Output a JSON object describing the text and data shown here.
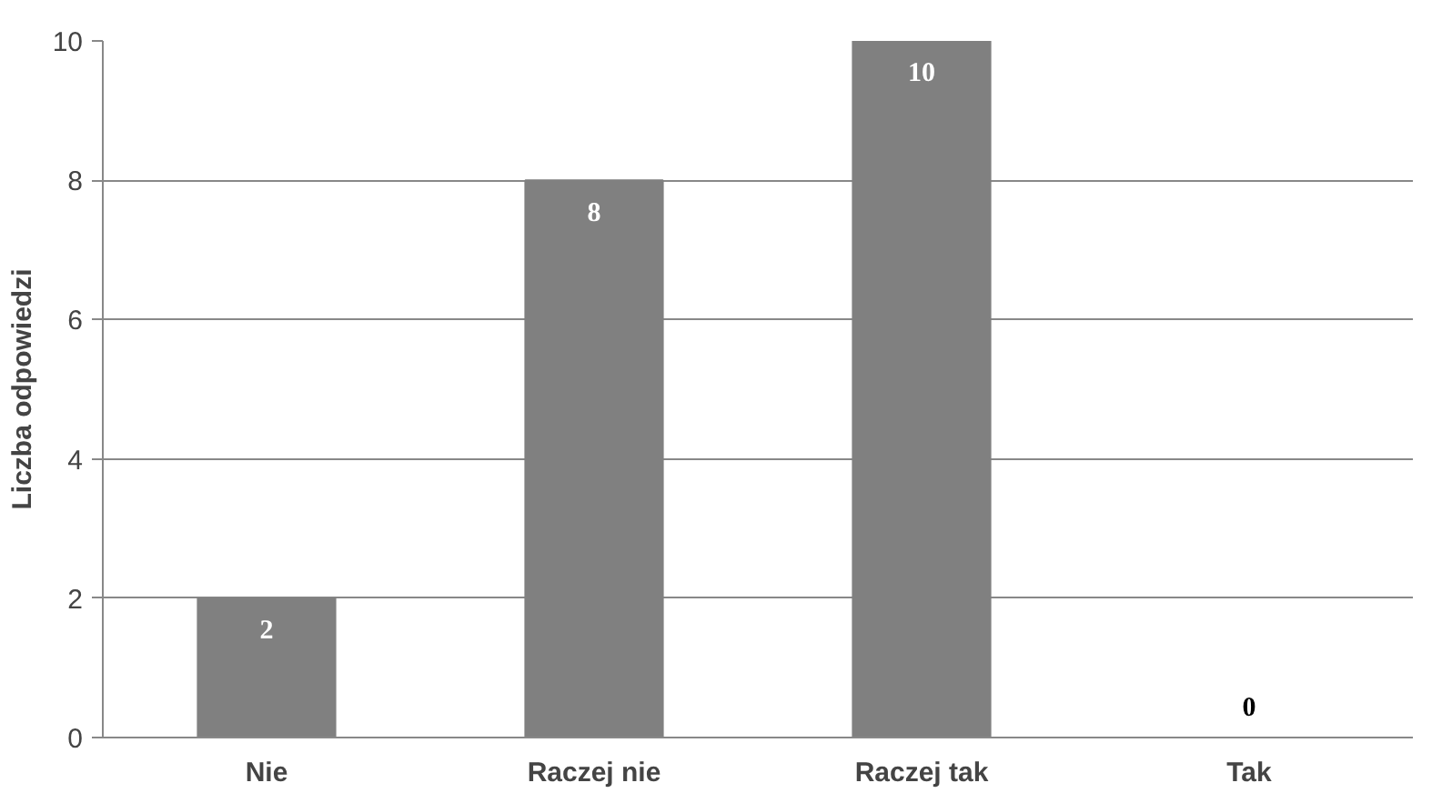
{
  "chart_data": {
    "type": "bar",
    "ylabel": "Liczba odpowiedzi",
    "categories": [
      "Nie",
      "Raczej nie",
      "Raczej tak",
      "Tak"
    ],
    "values": [
      2,
      8,
      10,
      0
    ],
    "color": "#808080",
    "ylim": [
      0,
      10
    ],
    "yticks": [
      0,
      2,
      4,
      6,
      8,
      10
    ],
    "grid": "y",
    "data_labels": true
  }
}
